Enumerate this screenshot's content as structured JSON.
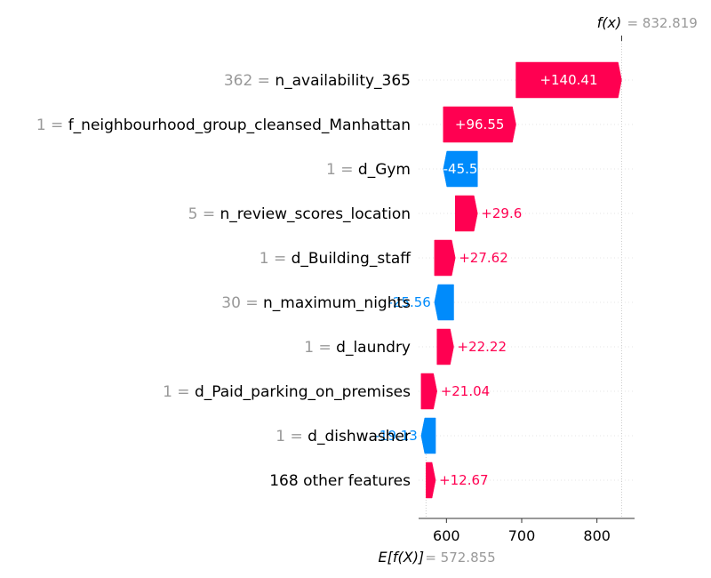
{
  "chart_data": {
    "type": "waterfall",
    "title": "",
    "base_value": 572.855,
    "output_value": 832.819,
    "base_label": "E[f(X)]",
    "base_value_text": "= 572.855",
    "output_label": "f(x)",
    "output_value_text": "= 832.819",
    "xlim": [
      563,
      850
    ],
    "x_ticks": [
      600,
      700,
      800
    ],
    "features": [
      {
        "value": "362",
        "name": "n_availability_365",
        "shap": 140.41,
        "label": "+140.41"
      },
      {
        "value": "1",
        "name": "f_neighbourhood_group_cleansed_Manhattan",
        "shap": 96.55,
        "label": "+96.55"
      },
      {
        "value": "1",
        "name": "d_Gym",
        "shap": -45.5,
        "label": "-45.5"
      },
      {
        "value": "5",
        "name": "n_review_scores_location",
        "shap": 29.6,
        "label": "+29.6"
      },
      {
        "value": "1",
        "name": "d_Building_staff",
        "shap": 27.62,
        "label": "+27.62"
      },
      {
        "value": "30",
        "name": "n_maximum_nights",
        "shap": -25.56,
        "label": "-25.56"
      },
      {
        "value": "1",
        "name": "d_laundry",
        "shap": 22.22,
        "label": "+22.22"
      },
      {
        "value": "1",
        "name": "d_Paid_parking_on_premises",
        "shap": 21.04,
        "label": "+21.04"
      },
      {
        "value": "1",
        "name": "d_dishwasher",
        "shap": -19.13,
        "label": "-19.13"
      },
      {
        "value": "",
        "name": "168 other features",
        "shap": 12.67,
        "label": "+12.67"
      }
    ],
    "colors": {
      "positive": "#ff0051",
      "negative": "#008bfb",
      "grid": "#cccccc",
      "axis": "#333333"
    }
  }
}
